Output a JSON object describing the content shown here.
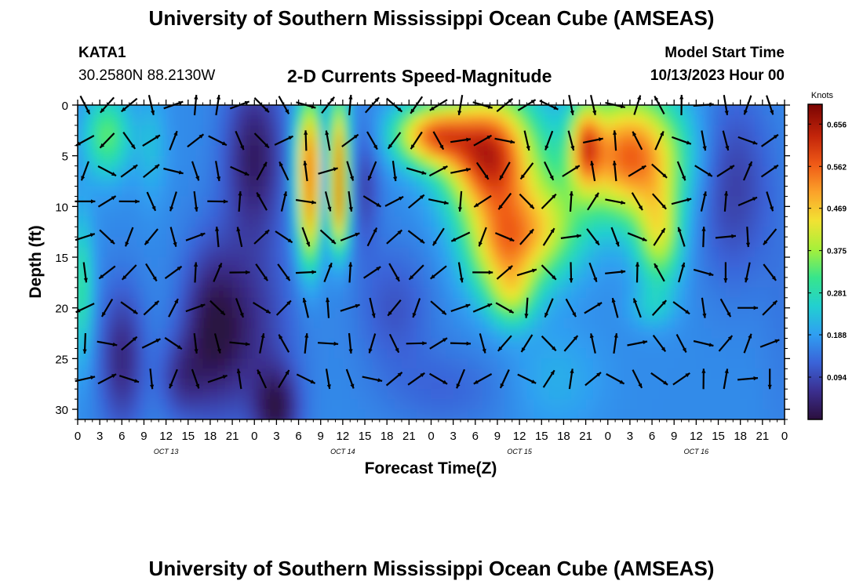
{
  "header": {
    "title": "University of Southern Mississippi Ocean Cube (AMSEAS)",
    "station": "KATA1",
    "coordinates": "30.2580N  88.2130W",
    "subtitle": "2-D Currents Speed-Magnitude",
    "model_start_label": "Model Start Time",
    "model_start_value": "10/13/2023 Hour 00"
  },
  "footer": {
    "title": "University of Southern Mississippi Ocean Cube (AMSEAS)"
  },
  "colors": {
    "arrow": "#000000",
    "colormap": [
      "#2b0f3d",
      "#3b2f8f",
      "#3a63d8",
      "#2f9ff2",
      "#22d0d0",
      "#37e58c",
      "#a6f03a",
      "#f2e233",
      "#fba32a",
      "#ef5a17",
      "#c2240a",
      "#7a0402"
    ]
  },
  "chart_data": {
    "type": "heatmap",
    "title": "2-D Currents Speed-Magnitude",
    "xlabel": "Forecast Time(Z)",
    "ylabel": "Depth (ft)",
    "x_unit": "hours from model start",
    "xlim": [
      0,
      96
    ],
    "ylim": [
      0,
      31
    ],
    "y_inverted": true,
    "y_ticks": [
      0,
      5,
      10,
      15,
      20,
      25,
      30
    ],
    "x_tick_labels": [
      "0",
      "3",
      "6",
      "9",
      "12",
      "15",
      "18",
      "21",
      "0",
      "3",
      "6",
      "9",
      "12",
      "15",
      "18",
      "21",
      "0",
      "3",
      "6",
      "9",
      "12",
      "15",
      "18",
      "21",
      "0",
      "3",
      "6",
      "9",
      "12",
      "15",
      "18",
      "21",
      "0"
    ],
    "day_labels": [
      {
        "label": "OCT 13",
        "hour": 12
      },
      {
        "label": "OCT 14",
        "hour": 36
      },
      {
        "label": "OCT 15",
        "hour": 60
      },
      {
        "label": "OCT 16",
        "hour": 84
      }
    ],
    "colorbar": {
      "title": "Knots",
      "ticks": [
        0.094,
        0.188,
        0.281,
        0.375,
        0.469,
        0.562,
        0.656
      ],
      "labels": [
        "0.094",
        "0.188",
        "0.281",
        "0.375",
        "0.469",
        "0.562",
        "0.656"
      ],
      "range": [
        0,
        0.7
      ]
    },
    "grid": false,
    "legend": "right"
  }
}
